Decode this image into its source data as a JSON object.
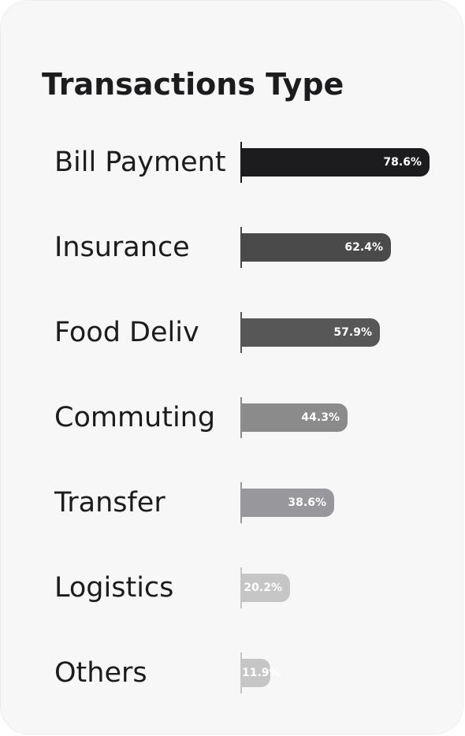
{
  "card": {
    "title": "Transactions Type"
  },
  "chart_data": {
    "type": "bar",
    "orientation": "horizontal",
    "title": "Transactions Type",
    "xlabel": "",
    "ylabel": "",
    "xlim": [
      0,
      100
    ],
    "grid": false,
    "legend": "none",
    "categories": [
      "Bill Payment",
      "Insurance",
      "Food Deliv",
      "Commuting",
      "Transfer",
      "Logistics",
      "Others"
    ],
    "values": [
      78.6,
      62.4,
      57.9,
      44.3,
      38.6,
      20.2,
      11.9
    ],
    "value_labels": [
      "78.6%",
      "62.4%",
      "57.9%",
      "44.3%",
      "38.6%",
      "20.2%",
      "11.9%"
    ],
    "colors": [
      "#1c1c1e",
      "#4a4a4a",
      "#575757",
      "#8a8b8a",
      "#98979b",
      "#c6c6c6",
      "#c6c6c6"
    ],
    "axis_tick_colors": [
      "#1c1c1e",
      "#4a4a4a",
      "#575757",
      "#8a8b8a",
      "#98979b",
      "#c6c6c6",
      "#c6c6c6"
    ]
  }
}
